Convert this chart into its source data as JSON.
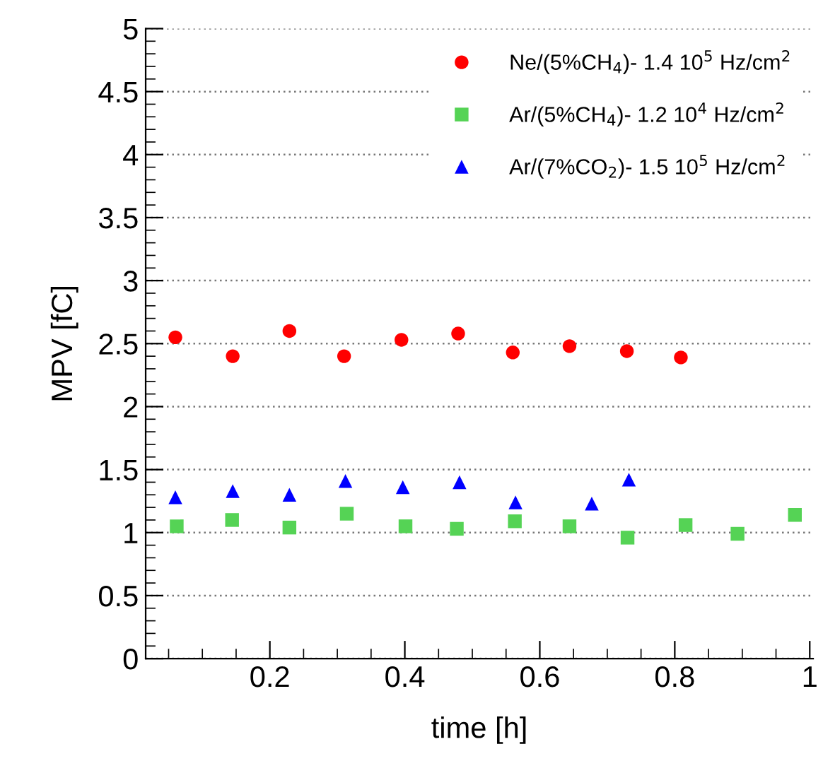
{
  "chart_data": {
    "type": "scatter",
    "xlabel": "time [h]",
    "ylabel": "MPV [fC]",
    "xlim": [
      0.016,
      1.005
    ],
    "xticks": [
      0.2,
      0.4,
      0.6,
      0.8,
      1
    ],
    "ylim": [
      0,
      5
    ],
    "yticks": [
      0,
      0.5,
      1,
      1.5,
      2,
      2.5,
      3,
      3.5,
      4,
      4.5,
      5
    ],
    "grid": "y",
    "legend": "top right",
    "series": [
      {
        "name": "Ne/(5%CH$_{4}$)- 1.4 10$^{5}$ Hz/cm$^{2}$",
        "color": "#ff0000",
        "marker": "circle",
        "x": [
          0.06,
          0.145,
          0.229,
          0.31,
          0.395,
          0.479,
          0.56,
          0.644,
          0.729,
          0.809
        ],
        "values": [
          2.55,
          2.4,
          2.6,
          2.4,
          2.53,
          2.58,
          2.43,
          2.48,
          2.44,
          2.39
        ]
      },
      {
        "name": "Ar/(5%CH$_{4}$)- 1.2 10$^{4}$ Hz/cm$^{2}$",
        "color": "#55d355",
        "marker": "square",
        "x": [
          0.062,
          0.144,
          0.229,
          0.314,
          0.401,
          0.477,
          0.563,
          0.644,
          0.73,
          0.816,
          0.893,
          0.978
        ],
        "values": [
          1.05,
          1.1,
          1.04,
          1.15,
          1.05,
          1.03,
          1.09,
          1.05,
          0.96,
          1.06,
          0.99,
          1.14
        ]
      },
      {
        "name": "Ar/(7%CO$_{2}$)- 1.5 10$^{5}$ Hz/cm$^{2}$",
        "color": "#0000ff",
        "marker": "triangle",
        "x": [
          0.06,
          0.145,
          0.229,
          0.312,
          0.397,
          0.481,
          0.564,
          0.677,
          0.732
        ],
        "values": [
          1.28,
          1.33,
          1.3,
          1.41,
          1.36,
          1.4,
          1.24,
          1.23,
          1.42
        ]
      }
    ]
  }
}
